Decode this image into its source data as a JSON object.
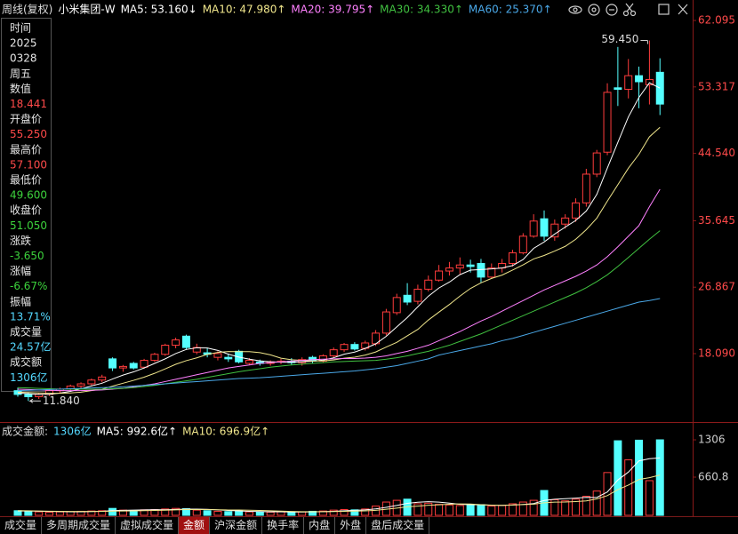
{
  "header": {
    "period": "周线(复权)"
  },
  "info_panel": [
    {
      "text": "时间",
      "color": "#e6e6e6"
    },
    {
      "text": "2025",
      "color": "#e6e6e6"
    },
    {
      "text": "0328",
      "color": "#e6e6e6"
    },
    {
      "text": "周五",
      "color": "#e6e6e6"
    },
    {
      "text": "数值",
      "color": "#e6e6e6"
    },
    {
      "text": "18.441",
      "color": "#ff4a4a"
    },
    {
      "text": "开盘价",
      "color": "#e6e6e6"
    },
    {
      "text": "55.250",
      "color": "#ff4a4a"
    },
    {
      "text": "最高价",
      "color": "#e6e6e6"
    },
    {
      "text": "57.100",
      "color": "#ff4a4a"
    },
    {
      "text": "最低价",
      "color": "#e6e6e6"
    },
    {
      "text": "49.600",
      "color": "#3cd23c"
    },
    {
      "text": "收盘价",
      "color": "#e6e6e6"
    },
    {
      "text": "51.050",
      "color": "#3cd23c"
    },
    {
      "text": "涨跌",
      "color": "#e6e6e6"
    },
    {
      "text": "-3.650",
      "color": "#3cd23c"
    },
    {
      "text": "涨幅",
      "color": "#e6e6e6"
    },
    {
      "text": "-6.67%",
      "color": "#3cd23c"
    },
    {
      "text": "振幅",
      "color": "#e6e6e6"
    },
    {
      "text": "13.71%",
      "color": "#54d8ff"
    },
    {
      "text": "成交量",
      "color": "#e6e6e6"
    },
    {
      "text": "24.57亿",
      "color": "#54d8ff"
    },
    {
      "text": "成交额",
      "color": "#e6e6e6"
    },
    {
      "text": "1306亿",
      "color": "#54d8ff"
    }
  ],
  "chart_data": [
    {
      "type": "candlestick",
      "title": "小米集团-W",
      "open": [
        13.2,
        12.7,
        12.4,
        12.7,
        13.2,
        13.4,
        13.8,
        14.1,
        14.6,
        17.4,
        16.2,
        16.8,
        16.3,
        17.2,
        18.0,
        19.2,
        20.4,
        18.3,
        18.2,
        17.6,
        17.6,
        18.4,
        16.8,
        17.0,
        16.8,
        17.0,
        17.1,
        16.9,
        17.6,
        17.1,
        17.8,
        18.6,
        19.3,
        18.8,
        19.4,
        20.8,
        23.5,
        25.8,
        25.0,
        26.6,
        27.8,
        29.0,
        29.4,
        29.8,
        30.0,
        28.2,
        29.4,
        30.0,
        31.4,
        33.6,
        35.9,
        33.5,
        35.2,
        36.0,
        38.0,
        41.8,
        44.7,
        53.2,
        53.0,
        54.8,
        53.6,
        55.25
      ],
      "high": [
        13.6,
        13.0,
        12.9,
        13.4,
        13.6,
        14.0,
        14.3,
        14.8,
        15.3,
        17.6,
        16.6,
        17.0,
        17.4,
        18.2,
        19.4,
        20.2,
        20.6,
        19.4,
        18.8,
        18.4,
        18.1,
        18.6,
        17.5,
        17.3,
        17.2,
        17.4,
        17.5,
        17.6,
        17.8,
        18.0,
        18.9,
        19.5,
        19.6,
        19.8,
        21.2,
        24.0,
        26.0,
        27.4,
        27.2,
        28.4,
        29.8,
        30.2,
        30.8,
        30.5,
        30.6,
        30.0,
        30.6,
        31.8,
        34.0,
        36.5,
        37.0,
        35.8,
        36.5,
        38.6,
        42.5,
        45.0,
        53.8,
        58.6,
        57.0,
        56.0,
        59.45,
        57.1
      ],
      "low": [
        12.4,
        11.84,
        12.1,
        12.5,
        12.9,
        13.2,
        13.5,
        13.9,
        14.3,
        15.8,
        15.7,
        16.0,
        16.1,
        17.0,
        17.8,
        18.8,
        18.6,
        18.0,
        17.6,
        17.2,
        17.0,
        16.8,
        16.6,
        16.5,
        16.5,
        16.7,
        16.6,
        16.5,
        16.8,
        16.9,
        17.6,
        18.3,
        18.5,
        18.5,
        19.1,
        20.5,
        23.2,
        24.5,
        24.6,
        26.3,
        27.6,
        28.4,
        28.6,
        28.8,
        27.5,
        28.0,
        28.8,
        29.6,
        31.2,
        33.4,
        33.0,
        33.0,
        34.6,
        35.5,
        37.5,
        41.4,
        44.3,
        50.8,
        51.8,
        50.5,
        51.0,
        49.6
      ],
      "close": [
        12.7,
        12.4,
        12.7,
        13.2,
        13.4,
        13.8,
        14.1,
        14.6,
        15.0,
        16.2,
        16.4,
        16.2,
        17.2,
        18.0,
        19.2,
        19.9,
        18.9,
        18.9,
        18.0,
        18.1,
        17.4,
        17.0,
        17.2,
        16.8,
        17.0,
        17.1,
        16.9,
        17.3,
        17.1,
        17.8,
        18.6,
        19.3,
        18.7,
        19.5,
        20.8,
        23.6,
        25.5,
        24.9,
        26.6,
        27.8,
        29.0,
        29.4,
        29.8,
        29.6,
        28.2,
        29.4,
        30.0,
        31.4,
        33.6,
        35.6,
        33.6,
        35.2,
        36.0,
        38.0,
        41.8,
        44.6,
        52.6,
        53.0,
        54.8,
        54.0,
        54.3,
        51.05
      ],
      "up_color": "#ff3c3c",
      "down_color": "#54ffff",
      "series": [
        {
          "name": "MA5: 53.160↓",
          "color": "#ffffff",
          "values": [
            12.9,
            12.8,
            12.7,
            12.7,
            12.88,
            13.1,
            13.44,
            13.82,
            14.18,
            14.74,
            15.26,
            15.68,
            16.2,
            16.8,
            17.4,
            18.1,
            18.64,
            18.86,
            18.84,
            18.52,
            18.02,
            17.64,
            17.36,
            17.14,
            17.02,
            16.96,
            16.94,
            17.02,
            17.08,
            17.24,
            17.54,
            18.02,
            18.3,
            18.78,
            19.38,
            20.38,
            21.62,
            22.86,
            24.28,
            25.68,
            26.76,
            27.54,
            28.52,
            29.12,
            29.2,
            29.28,
            29.4,
            29.72,
            30.52,
            32.0,
            32.84,
            33.88,
            34.8,
            35.68,
            36.92,
            39.12,
            42.6,
            46.0,
            49.36,
            51.92,
            53.86,
            53.16
          ]
        },
        {
          "name": "MA10: 47.980↑",
          "color": "#f0e68c",
          "values": [
            13.0,
            12.95,
            12.9,
            12.85,
            12.85,
            12.9,
            13.0,
            13.2,
            13.4,
            13.8,
            14.18,
            14.56,
            14.98,
            15.49,
            16.07,
            16.68,
            17.16,
            17.53,
            17.99,
            18.25,
            18.37,
            18.36,
            18.36,
            18.22,
            17.93,
            17.49,
            17.29,
            17.19,
            17.11,
            17.13,
            17.25,
            17.49,
            17.62,
            17.9,
            18.31,
            18.96,
            19.58,
            20.44,
            21.29,
            22.53,
            23.57,
            24.58,
            25.69,
            26.7,
            27.44,
            28.02,
            28.46,
            29.13,
            29.82,
            30.6,
            31.06,
            31.64,
            32.26,
            33.2,
            34.46,
            35.98,
            38.23,
            40.4,
            42.58,
            44.42,
            46.73,
            47.98
          ]
        },
        {
          "name": "MA20: 39.795↑",
          "color": "#ff80ff",
          "values": [
            13.4,
            13.35,
            13.3,
            13.25,
            13.2,
            13.2,
            13.2,
            13.25,
            13.3,
            13.4,
            13.5,
            13.7,
            13.9,
            14.1,
            14.4,
            14.7,
            15.0,
            15.3,
            15.6,
            15.9,
            16.2,
            16.4,
            16.6,
            16.8,
            16.9,
            17.0,
            17.1,
            17.2,
            17.3,
            17.35,
            17.4,
            17.45,
            17.45,
            17.5,
            17.6,
            17.8,
            18.1,
            18.4,
            18.8,
            19.2,
            19.8,
            20.4,
            21.0,
            21.7,
            22.4,
            23.0,
            23.7,
            24.4,
            25.1,
            25.8,
            26.5,
            27.1,
            27.7,
            28.3,
            29.0,
            29.8,
            30.9,
            32.2,
            33.6,
            35.0,
            37.5,
            39.795
          ]
        },
        {
          "name": "MA30: 34.330↑",
          "color": "#40c040",
          "values": [
            13.6,
            13.55,
            13.5,
            13.45,
            13.4,
            13.4,
            13.4,
            13.4,
            13.4,
            13.45,
            13.5,
            13.6,
            13.75,
            13.9,
            14.1,
            14.3,
            14.5,
            14.7,
            14.95,
            15.2,
            15.45,
            15.7,
            15.9,
            16.1,
            16.3,
            16.45,
            16.6,
            16.7,
            16.8,
            16.9,
            17.0,
            17.05,
            17.1,
            17.15,
            17.2,
            17.35,
            17.55,
            17.8,
            18.1,
            18.4,
            18.8,
            19.2,
            19.7,
            20.2,
            20.7,
            21.3,
            21.9,
            22.5,
            23.1,
            23.7,
            24.3,
            24.9,
            25.5,
            26.1,
            26.8,
            27.6,
            28.5,
            29.6,
            30.8,
            32.0,
            33.2,
            34.33
          ]
        },
        {
          "name": "MA60: 25.370↑",
          "color": "#4aa8e8",
          "values": [
            13.2,
            13.25,
            13.3,
            13.35,
            13.4,
            13.45,
            13.5,
            13.55,
            13.6,
            13.65,
            13.7,
            13.8,
            13.9,
            14.0,
            14.1,
            14.2,
            14.3,
            14.4,
            14.5,
            14.6,
            14.7,
            14.8,
            14.85,
            14.9,
            15.0,
            15.1,
            15.2,
            15.3,
            15.4,
            15.5,
            15.6,
            15.7,
            15.8,
            15.95,
            16.1,
            16.3,
            16.5,
            16.8,
            17.1,
            17.4,
            17.9,
            18.2,
            18.5,
            18.8,
            19.1,
            19.4,
            19.8,
            20.1,
            20.5,
            20.9,
            21.3,
            21.7,
            22.1,
            22.5,
            22.9,
            23.3,
            23.7,
            24.1,
            24.5,
            24.9,
            25.1,
            25.37
          ]
        }
      ],
      "ylim": [
        10.11,
        62.45
      ],
      "yticks": [
        62.095,
        53.317,
        {
          "value": 44.54,
          "label": "44.540"
        },
        35.645,
        26.867,
        {
          "value": 18.09,
          "label": "18.090"
        }
      ],
      "tick_color": "#ff4a4a",
      "max_label": {
        "value": 59.45,
        "label": "59.450"
      },
      "min_label": {
        "value": 11.84,
        "label": "11.840"
      }
    },
    {
      "type": "bar",
      "title": "成交金额:",
      "title_value": "1306亿",
      "values": [
        80,
        70,
        60,
        55,
        60,
        65,
        70,
        75,
        80,
        120,
        90,
        85,
        95,
        100,
        110,
        120,
        115,
        90,
        80,
        70,
        65,
        75,
        60,
        55,
        55,
        60,
        55,
        60,
        70,
        75,
        90,
        100,
        95,
        110,
        160,
        230,
        260,
        280,
        200,
        210,
        190,
        180,
        170,
        175,
        185,
        160,
        170,
        200,
        230,
        260,
        430,
        270,
        250,
        280,
        330,
        420,
        740,
        1290,
        960,
        1300,
        600,
        1306
      ],
      "series": [
        {
          "name": "MA5: 992.6亿↑",
          "color": "#ffffff",
          "values": [
            75,
            75,
            72,
            68,
            65,
            62,
            61,
            65,
            70,
            82,
            87,
            90,
            94,
            98,
            96,
            102,
            108,
            107,
            103,
            95,
            84,
            76,
            70,
            65,
            62,
            61,
            57,
            57,
            60,
            64,
            70,
            79,
            86,
            94,
            111,
            139,
            171,
            208,
            226,
            236,
            228,
            212,
            190,
            185,
            182,
            174,
            172,
            178,
            189,
            204,
            258,
            278,
            288,
            298,
            312,
            310,
            404,
            612,
            748,
            942,
            980,
            992.6
          ]
        },
        {
          "name": "MA10: 696.9亿↑",
          "color": "#f0e68c",
          "values": [
            80,
            78,
            75,
            72,
            70,
            68,
            67,
            68,
            70,
            72,
            74,
            77,
            80,
            84,
            89,
            95,
            99,
            100,
            99,
            96,
            93,
            92,
            89,
            84,
            79,
            73,
            67,
            63,
            63,
            63,
            66,
            70,
            73,
            77,
            87,
            105,
            125,
            147,
            160,
            175,
            183,
            192,
            198,
            196,
            184,
            176,
            172,
            178,
            186,
            193,
            218,
            228,
            230,
            238,
            250,
            284,
            341,
            445,
            523,
            620,
            652,
            696.9
          ]
        }
      ],
      "ylim": [
        0,
        1460
      ],
      "yticks": [
        660.8,
        1306
      ],
      "tick_color": "#cccccc"
    }
  ],
  "tabs": [
    {
      "label": "成交量"
    },
    {
      "label": "多周期成交量"
    },
    {
      "label": "虚拟成交量"
    },
    {
      "label": "金额",
      "active": true
    },
    {
      "label": "沪深金额"
    },
    {
      "label": "换手率"
    },
    {
      "label": "内盘"
    },
    {
      "label": "外盘"
    },
    {
      "label": "盘后成交量"
    }
  ]
}
